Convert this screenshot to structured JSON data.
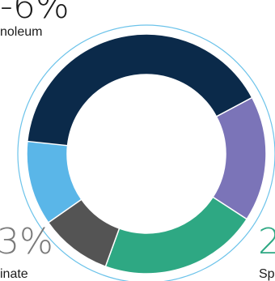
{
  "chart_data": {
    "type": "pie",
    "donut": true,
    "title": "",
    "slices": [
      {
        "label": "Linoleum",
        "color": "#0b2a4a"
      },
      {
        "label": "",
        "color": "#7b74b8"
      },
      {
        "label": "Sp",
        "color": "#2ea883"
      },
      {
        "label": "",
        "color": "#545454"
      },
      {
        "label": "",
        "color": "#5ab6e8"
      }
    ],
    "visible_labels": [
      {
        "value_text": "-6%",
        "label": "noleum",
        "color": "#1b1b1b"
      },
      {
        "value_text": "3%",
        "label": "inate",
        "color": "#7a7a7a"
      },
      {
        "value_text": "2",
        "label": "Sp",
        "color": "#2ea883"
      }
    ]
  },
  "ring_color": "#6cc3ea"
}
